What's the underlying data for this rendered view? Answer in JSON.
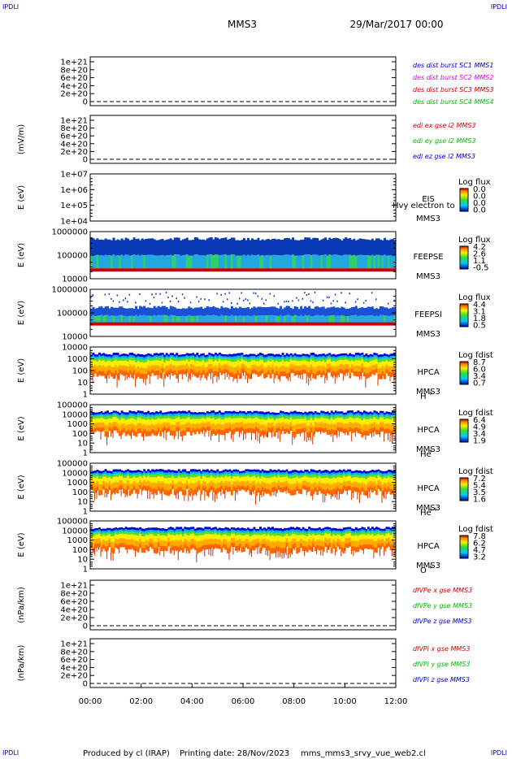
{
  "header": {
    "corner": "IPDLI",
    "mission": "MMS3",
    "date": "29/Mar/2017 00:00"
  },
  "footer": {
    "credit": "Produced by cl (IRAP)",
    "printing": "Printing date: 28/Nov/2023",
    "file": "mms_mms3_srvy_vue_web2.cl"
  },
  "x_ticks": [
    "00:00",
    "02:00",
    "04:00",
    "06:00",
    "08:00",
    "10:00",
    "12:00"
  ],
  "chart_data": [
    {
      "type": "line",
      "ylabel": "",
      "ticks": [
        "1e+21",
        "8e+20",
        "6e+20",
        "4e+20",
        "2e+20",
        "0"
      ],
      "legend": [
        {
          "text": "des dist burst SC1 MMS1",
          "color": "#0000cc"
        },
        {
          "text": "des dist burst SC2 MMS2",
          "color": "#dd00dd"
        },
        {
          "text": "des dist burst SC3 MMS3",
          "color": "#cc0000"
        },
        {
          "text": "des dist burst SC4 MMS4",
          "color": "#00bb00"
        }
      ]
    },
    {
      "type": "line",
      "ylabel": "(mV/m)",
      "ticks": [
        "1e+21",
        "8e+20",
        "6e+20",
        "4e+20",
        "2e+20",
        "0"
      ],
      "legend": [
        {
          "text": "edi ex gse l2 MMS3",
          "color": "#cc0000"
        },
        {
          "text": "edi ey gse l2 MMS3",
          "color": "#00bb00"
        },
        {
          "text": "edi ez gse l2 MMS3",
          "color": "#0000cc"
        }
      ]
    },
    {
      "type": "heatmap",
      "ylabel": "E (eV)",
      "ticks": [
        "1e+07",
        "1e+06",
        "1e+05",
        "1e+04"
      ],
      "instrument": [
        "EIS",
        "MMS3"
      ],
      "overlay": "Hvy electron to",
      "cbar_title": "Log flux",
      "cbar_ticks": [
        "0.0",
        "0.0",
        "0.0",
        "0.0"
      ],
      "empty": true
    },
    {
      "type": "heatmap",
      "ylabel": "E (eV)",
      "ticks": [
        "1000000",
        "100000",
        "10000"
      ],
      "instrument": [
        "FEEPSE",
        "MMS3"
      ],
      "cbar_title": "Log flux",
      "cbar_ticks": [
        "4.2",
        "2.6",
        "1.1",
        "-0.5"
      ]
    },
    {
      "type": "heatmap",
      "ylabel": "E (eV)",
      "ticks": [
        "1000000",
        "100000",
        "10000"
      ],
      "instrument": [
        "FEEPSI",
        "MMS3"
      ],
      "cbar_title": "Log flux",
      "cbar_ticks": [
        "4.4",
        "3.1",
        "1.8",
        "0.5"
      ]
    },
    {
      "type": "heatmap",
      "ylabel": "E (eV)",
      "ticks": [
        "10000",
        "1000",
        "100",
        "10",
        "1"
      ],
      "instrument": [
        "HPCA",
        "MMS3"
      ],
      "species": "H",
      "charge": "+",
      "cbar_title": "Log fdist",
      "cbar_ticks": [
        "8.7",
        "6.0",
        "3.4",
        "0.7"
      ]
    },
    {
      "type": "heatmap",
      "ylabel": "E (eV)",
      "ticks": [
        "100000",
        "10000",
        "1000",
        "100",
        "10",
        "1"
      ],
      "instrument": [
        "HPCA",
        "MMS3"
      ],
      "species": "He",
      "charge": "+",
      "cbar_title": "Log fdist",
      "cbar_ticks": [
        "6.4",
        "4.9",
        "3.4",
        "1.9"
      ]
    },
    {
      "type": "heatmap",
      "ylabel": "E (eV)",
      "ticks": [
        "100000",
        "10000",
        "1000",
        "100",
        "10",
        "1"
      ],
      "instrument": [
        "HPCA",
        "MMS3"
      ],
      "species": "He",
      "charge": "++",
      "cbar_title": "Log fdist",
      "cbar_ticks": [
        "7.2",
        "5.4",
        "3.5",
        "1.6"
      ]
    },
    {
      "type": "heatmap",
      "ylabel": "E (eV)",
      "ticks": [
        "100000",
        "10000",
        "1000",
        "100",
        "10",
        "1"
      ],
      "instrument": [
        "HPCA",
        "MMS3"
      ],
      "species": "O",
      "charge": "+",
      "cbar_title": "Log fdist",
      "cbar_ticks": [
        "7.8",
        "6.2",
        "4.7",
        "3.2"
      ]
    },
    {
      "type": "line",
      "ylabel": "(nPa/km)",
      "ticks": [
        "1e+21",
        "8e+20",
        "6e+20",
        "4e+20",
        "2e+20",
        "0"
      ],
      "legend": [
        {
          "text": "dIVPe x gse MMS3",
          "color": "#cc0000"
        },
        {
          "text": "dIVPe y gse MMS3",
          "color": "#00bb00"
        },
        {
          "text": "dIVPe z gse MMS3",
          "color": "#0000cc"
        }
      ]
    },
    {
      "type": "line",
      "ylabel": "(nPa/km)",
      "ticks": [
        "1e+21",
        "8e+20",
        "6e+20",
        "4e+20",
        "2e+20",
        "0"
      ],
      "legend": [
        {
          "text": "dIVPi x gse MMS3",
          "color": "#cc0000"
        },
        {
          "text": "dIVPi y gse MMS3",
          "color": "#00bb00"
        },
        {
          "text": "dIVPi z gse MMS3",
          "color": "#0000cc"
        }
      ]
    }
  ]
}
